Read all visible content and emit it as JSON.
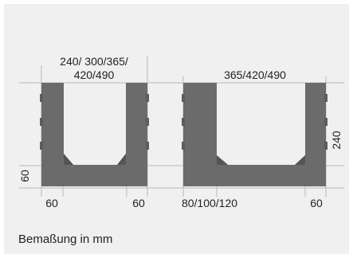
{
  "labels": {
    "left_top_line1": "240/ 300/365/",
    "left_top_line2": "420/490",
    "right_top": "365/420/490",
    "left_side": "60",
    "right_side": "240",
    "left_bottom_left": "60",
    "left_bottom_right": "60",
    "right_bottom_left": "80/100/120",
    "right_bottom_right": "60"
  },
  "caption": "Bemaßung in mm",
  "colors": {
    "panel_bg": "#f0f0f0",
    "block_fill": "#6b6b6b",
    "block_dark": "#555555",
    "dimension_line": "#b8b8b8",
    "text": "#222222"
  }
}
